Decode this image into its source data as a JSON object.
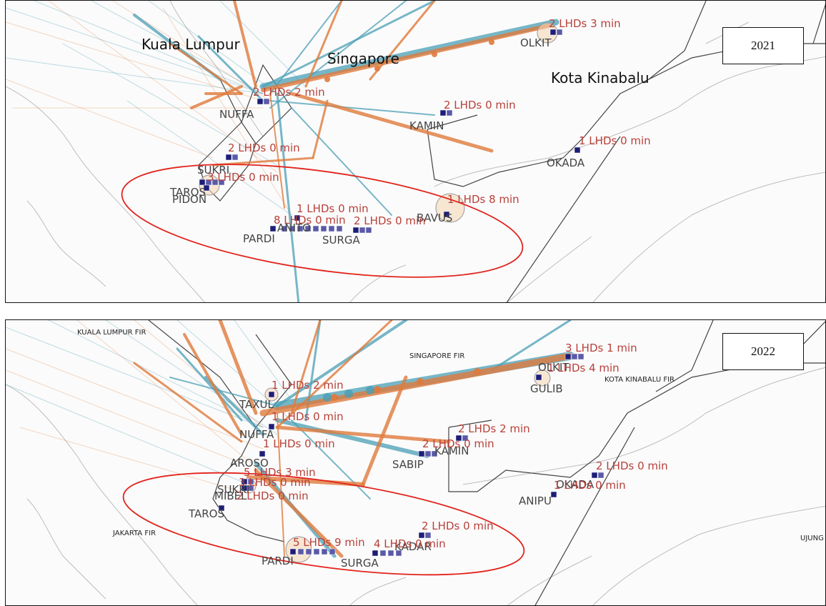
{
  "colors": {
    "orange": "#e07a3c",
    "teal": "#4a9fb5",
    "ellipse": "#e3231c",
    "marker": "#1e1e78",
    "label": "#b8403a"
  },
  "panels": [
    {
      "year": "2021",
      "cities": [
        "Kuala Lumpur",
        "Singapore",
        "Kota Kinabalu"
      ],
      "waypoints": [
        "NUFFA",
        "KAMIN",
        "OKADA",
        "SUKRI",
        "TAROS",
        "PIDON",
        "ANITO",
        "PARDI",
        "SURGA",
        "BAVUS",
        "OLKIT"
      ],
      "lhd_labels": [
        "2 LHDs 3 min",
        "2 LHDs 2 min",
        "2 LHDs 0 min",
        "1 LHDs 0 min",
        "2 LHDs 0 min",
        "3 LHDs 0 min",
        "1 LHDs 8 min",
        "1 LHDs 0 min",
        "8 LHDs 0 min",
        "2 LHDs 0 min"
      ]
    },
    {
      "year": "2022",
      "fir_labels": [
        "KUALA LUMPUR FIR",
        "SINGAPORE FIR",
        "KOTA KINABALU FIR",
        "JAKARTA FIR",
        "UJUNG"
      ],
      "waypoints": [
        "TAXUL",
        "NUFFA",
        "SABIP",
        "KAMIN",
        "AROSO",
        "SUKRI",
        "MIBEL",
        "TAROS",
        "PARDI",
        "SURGA",
        "KADAR",
        "ANIPU",
        "OKADA",
        "GULIB",
        "OLKIT"
      ],
      "lhd_labels": [
        "3 LHDs 1 min",
        "1 LHDs 4 min",
        "1 LHDs 2 min",
        "1 LHDs 0 min",
        "2 LHDs 2 min",
        "2 LHDs 0 min",
        "1 LHDs 0 min",
        "2 LHDs 0 min",
        "1 LHDs 0 min",
        "5 LHDs 3 min",
        "3 LHDs 0 min",
        "2 LHDs 0 min",
        "5 LHDs 9 min",
        "4 LHDs 0 min",
        "2 LHDs 0 min"
      ]
    }
  ]
}
